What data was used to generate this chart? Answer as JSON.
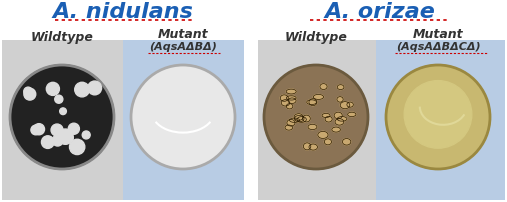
{
  "title_nidulans": "A. nidulans",
  "title_orizae": "A. orizae",
  "title_color": "#1a5fb4",
  "title_fontsize": 16,
  "label_wildtype": "Wildtype",
  "label_mutant": "Mutant",
  "label_nidulans_sub": "(AqsAΔBΔ)",
  "label_orizae_sub": "(AqsAΔBΔCΔ)",
  "bg_wildtype_nidulans": "#cccccc",
  "bg_mutant_nidulans": "#b8c8e0",
  "bg_wildtype_orizae": "#cccccc",
  "bg_mutant_orizae": "#b8c8e0",
  "figure_bg": "#ffffff",
  "label_fontsize": 9,
  "sub_label_fontsize": 8
}
